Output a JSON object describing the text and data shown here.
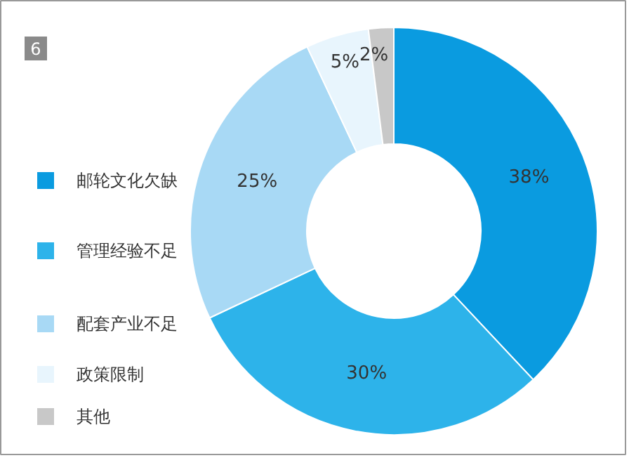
{
  "chart_data": {
    "type": "donut",
    "categories": [
      "邮轮文化欠缺",
      "管理经验不足",
      "配套产业不足",
      "政策限制",
      "其他"
    ],
    "values": [
      38,
      30,
      25,
      5,
      2
    ],
    "value_labels": [
      "38%",
      "30%",
      "25%",
      "5%",
      "2%"
    ],
    "colors": [
      "#0a9be0",
      "#2db3ea",
      "#a8d9f5",
      "#e8f5fd",
      "#c8c8c8"
    ],
    "legend": "left",
    "annotations": [
      "6"
    ]
  }
}
